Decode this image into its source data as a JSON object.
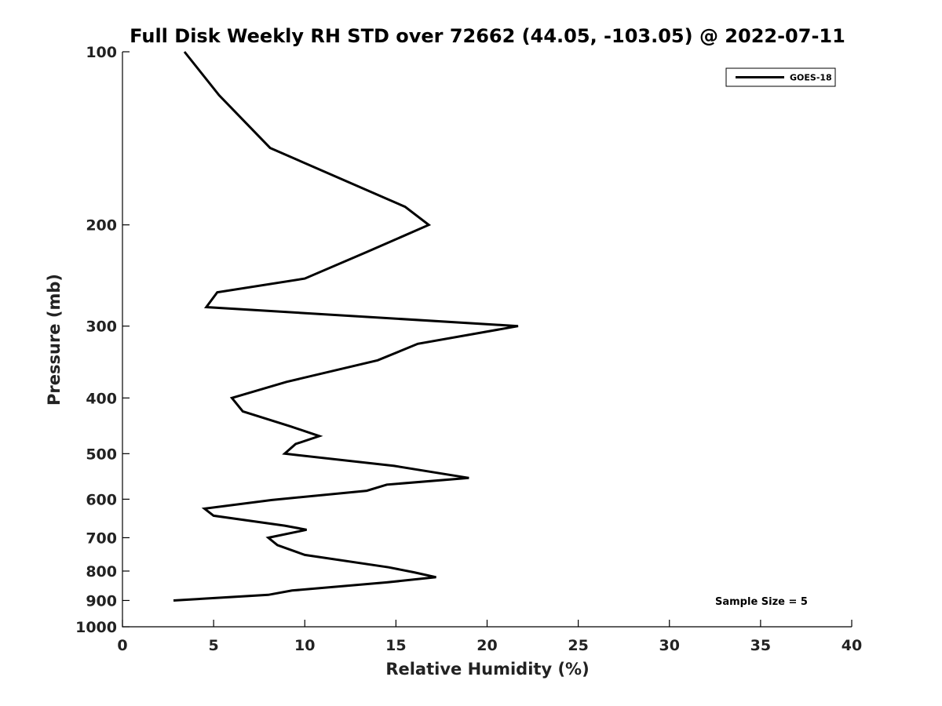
{
  "chart_data": {
    "type": "line",
    "title": "Full Disk Weekly RH STD over 72662 (44.05, -103.05) @ 2022-07-11",
    "xlabel": "Relative Humidity (%)",
    "ylabel": "Pressure (mb)",
    "xlim": [
      0,
      40
    ],
    "ylim": [
      100,
      1000
    ],
    "y_scale": "log",
    "y_reversed": true,
    "grid": false,
    "legend_position": "top-right",
    "x_ticks": [
      0,
      5,
      10,
      15,
      20,
      25,
      30,
      35,
      40
    ],
    "y_ticks": [
      100,
      200,
      300,
      400,
      500,
      600,
      700,
      800,
      900,
      1000
    ],
    "series": [
      {
        "name": "GOES-18",
        "color": "#000000",
        "points": [
          [
            3.4,
            100
          ],
          [
            5.3,
            119
          ],
          [
            8.1,
            147
          ],
          [
            15.5,
            186
          ],
          [
            16.8,
            200
          ],
          [
            13.4,
            223
          ],
          [
            10.0,
            248
          ],
          [
            5.2,
            262
          ],
          [
            4.6,
            278
          ],
          [
            21.7,
            300
          ],
          [
            16.2,
            322
          ],
          [
            14.0,
            344
          ],
          [
            9.0,
            375
          ],
          [
            6.0,
            400
          ],
          [
            6.6,
            422
          ],
          [
            9.2,
            448
          ],
          [
            10.8,
            466
          ],
          [
            9.5,
            481
          ],
          [
            8.9,
            500
          ],
          [
            14.9,
            525
          ],
          [
            19.0,
            551
          ],
          [
            14.5,
            566
          ],
          [
            13.4,
            580
          ],
          [
            8.2,
            602
          ],
          [
            4.5,
            623
          ],
          [
            5.0,
            641
          ],
          [
            8.9,
            667
          ],
          [
            10.1,
            678
          ],
          [
            8.0,
            700
          ],
          [
            8.5,
            721
          ],
          [
            10.0,
            750
          ],
          [
            14.6,
            788
          ],
          [
            16.0,
            804
          ],
          [
            17.2,
            820
          ],
          [
            14.5,
            837
          ],
          [
            9.3,
            865
          ],
          [
            8.0,
            880
          ],
          [
            2.8,
            900
          ]
        ]
      }
    ],
    "annotations": [
      "Sample Size = 5"
    ]
  }
}
